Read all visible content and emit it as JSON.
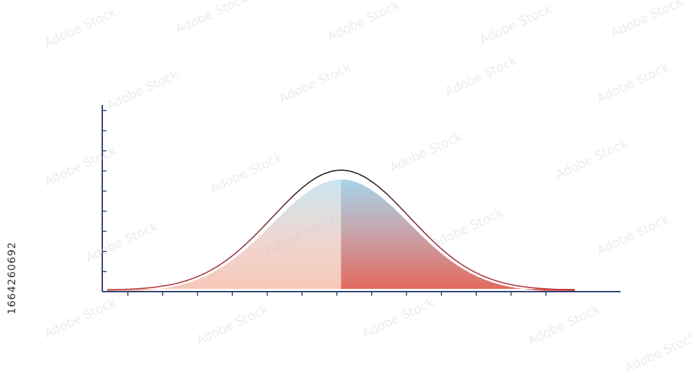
{
  "image_id_label": "1664260692",
  "watermark_text": "Adobe Stock",
  "colors": {
    "axis": "#2e3f72",
    "outline_left": "#b5323a",
    "outline_top": "#1a1a1a",
    "fill_top": "#a9d5ea",
    "fill_bottom_left": "#f6cfc1",
    "fill_bottom_right": "#e4685a"
  },
  "chart_data": {
    "type": "area",
    "title": "",
    "xlabel": "",
    "ylabel": "",
    "distribution": "normal",
    "x": [
      -3.4,
      -3.0,
      -2.5,
      -2.0,
      -1.5,
      -1.0,
      -0.5,
      0.0,
      0.5,
      1.0,
      1.5,
      2.0,
      2.5,
      3.0,
      3.4
    ],
    "y": [
      0.0012,
      0.0044,
      0.0175,
      0.054,
      0.1295,
      0.242,
      0.3521,
      0.3989,
      0.3521,
      0.242,
      0.1295,
      0.054,
      0.0175,
      0.0044,
      0.0012
    ],
    "xlim": [
      -3.4,
      3.4
    ],
    "ylim": [
      0,
      0.62
    ],
    "split_at_x": 0.0,
    "x_tick_count": 13,
    "y_tick_count": 10,
    "grid": false,
    "legend": "none"
  }
}
